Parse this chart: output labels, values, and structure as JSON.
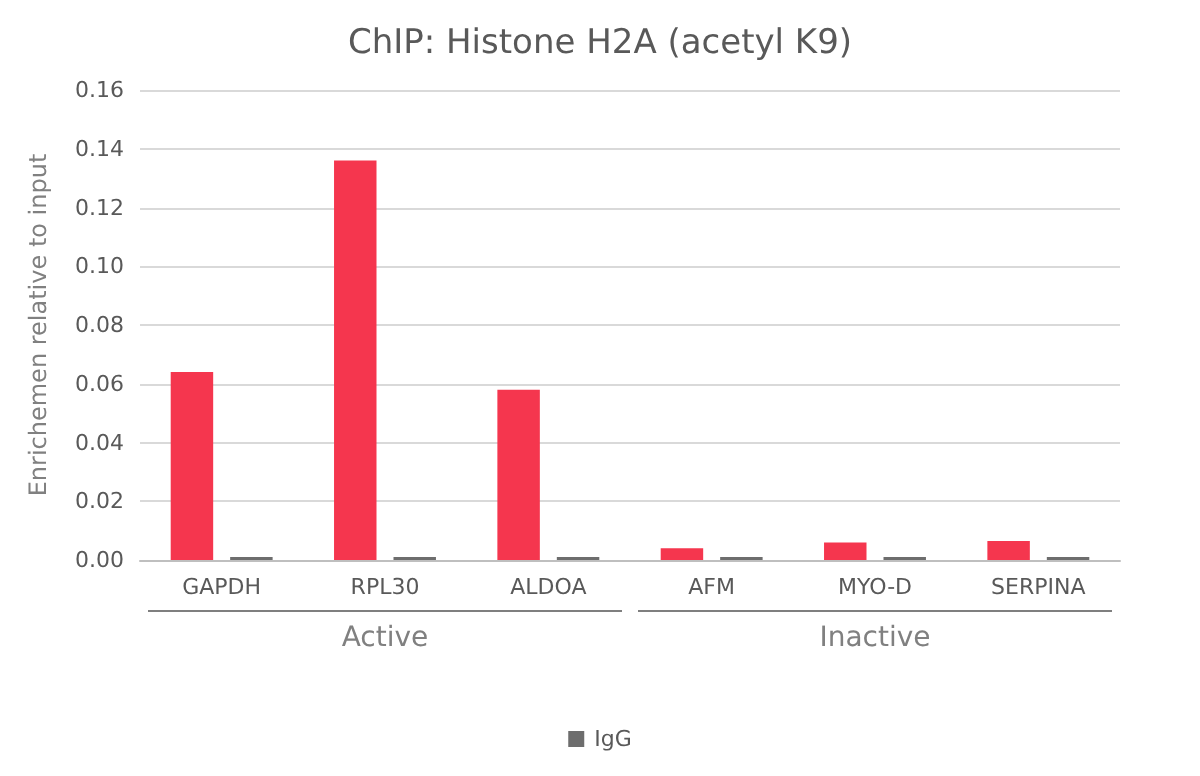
{
  "chart_data": {
    "type": "bar",
    "title": "ChIP: Histone H2A (acetyl K9)",
    "ylabel": "Enrichemen relative to input",
    "categories": [
      "GAPDH",
      "RPL30",
      "ALDOA",
      "AFM",
      "MYO-D",
      "SERPINA"
    ],
    "series": [
      {
        "color": "#f5364e",
        "values": [
          0.064,
          0.136,
          0.058,
          0.004,
          0.006,
          0.0065
        ]
      },
      {
        "name": "IgG",
        "color": "#6d6d6d",
        "values": [
          0.001,
          0.001,
          0.001,
          0.001,
          0.001,
          0.001
        ]
      }
    ],
    "annotations": [
      "Active",
      "Inactive"
    ],
    "ylim": [
      0,
      0.16
    ],
    "yticks": [
      {
        "value": 0,
        "label": "0.00"
      },
      {
        "value": 0.02,
        "label": "0.02"
      },
      {
        "value": 0.04,
        "label": "0.04"
      },
      {
        "value": 0.06,
        "label": "0.06"
      },
      {
        "value": 0.08,
        "label": "0.08"
      },
      {
        "value": 0.1,
        "label": "0.10"
      },
      {
        "value": 0.12,
        "label": "0.12"
      },
      {
        "value": 0.14,
        "label": "0.14"
      },
      {
        "value": 0.16,
        "label": "0.16"
      }
    ],
    "grid": "y",
    "legend": "bottom"
  }
}
